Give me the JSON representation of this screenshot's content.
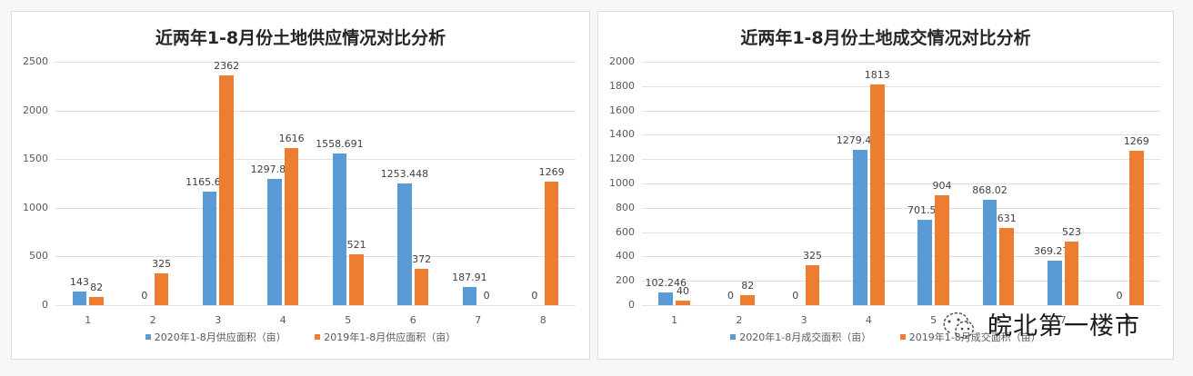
{
  "colors": {
    "series_2020": "#5b9bd5",
    "series_2019": "#ed7d31"
  },
  "watermark": {
    "text": "皖北第一楼市",
    "icon": "wechat-dotted-icon"
  },
  "chart_data": [
    {
      "type": "bar",
      "title": "近两年1-8月份土地供应情况对比分析",
      "categories": [
        "1",
        "2",
        "3",
        "4",
        "5",
        "6",
        "7",
        "8"
      ],
      "series": [
        {
          "name": "2020年1-8月供应面积（亩）",
          "values": [
            143,
            0,
            1165.613,
            1297.801,
            1558.691,
            1253.448,
            187.91,
            0
          ],
          "labels": [
            "143",
            "0",
            "1165.613",
            "1297.801",
            "1558.691",
            "1253.448",
            "187.91",
            "0"
          ]
        },
        {
          "name": "2019年1-8月供应面积（亩）",
          "values": [
            82,
            325,
            2362,
            1616,
            521,
            372,
            0,
            1269
          ],
          "labels": [
            "82",
            "325",
            "2362",
            "1616",
            "521",
            "372",
            "0",
            "1269"
          ]
        }
      ],
      "yticks": [
        "0",
        "500",
        "1000",
        "1500",
        "2000",
        "2500"
      ],
      "ylim": [
        0,
        2500
      ],
      "xlabel": "",
      "ylabel": "",
      "grid": true,
      "legend_position": "bottom"
    },
    {
      "type": "bar",
      "title": "近两年1-8月份土地成交情况对比分析",
      "categories": [
        "1",
        "2",
        "3",
        "4",
        "5",
        "6",
        "7",
        "8"
      ],
      "series": [
        {
          "name": "2020年1-8月成交面积（亩）",
          "values": [
            102.246,
            0,
            0,
            1279.423,
            701.58,
            868.02,
            369.274,
            0
          ],
          "labels": [
            "102.246",
            "0",
            "0",
            "1279.423",
            "701.58",
            "868.02",
            "369.274",
            "0"
          ]
        },
        {
          "name": "2019年1-8月成交面积（亩）",
          "values": [
            40,
            82,
            325,
            1813,
            904,
            631,
            523,
            1269
          ],
          "labels": [
            "40",
            "82",
            "325",
            "1813",
            "904",
            "631",
            "523",
            "1269"
          ]
        }
      ],
      "yticks": [
        "0",
        "200",
        "400",
        "600",
        "800",
        "1000",
        "1200",
        "1400",
        "1600",
        "1800",
        "2000"
      ],
      "ylim": [
        0,
        2000
      ],
      "xlabel": "",
      "ylabel": "",
      "grid": true,
      "legend_position": "bottom"
    }
  ]
}
